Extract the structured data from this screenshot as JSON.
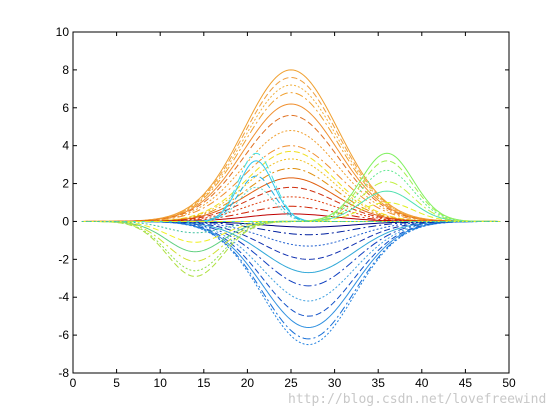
{
  "chart_data": {
    "type": "line",
    "title": "",
    "xlabel": "",
    "ylabel": "",
    "xlim": [
      0,
      50
    ],
    "ylim": [
      -8,
      10
    ],
    "x_ticks": [
      "0",
      "5",
      "10",
      "15",
      "20",
      "25",
      "30",
      "35",
      "40",
      "45",
      "50"
    ],
    "y_ticks": [
      "10",
      "8",
      "6",
      "4",
      "2",
      "0",
      "-2",
      "-4",
      "-6",
      "-8"
    ],
    "x_samples": [
      1,
      49
    ],
    "grid": false,
    "legend": "none",
    "series": [
      {
        "type": "gauss",
        "mu": 25,
        "sigma": 5.4,
        "amps": [
          8.0,
          7.6,
          7.2,
          6.8,
          6.2,
          5.6,
          4.8,
          4.0
        ],
        "colors": [
          "#f0a030",
          "#f0a040",
          "#f0b040",
          "#f0a030",
          "#f09030",
          "#e07020",
          "#f0a030",
          "#f09030"
        ]
      },
      {
        "type": "gauss",
        "mu": 25,
        "sigma": 5.0,
        "amps": [
          3.7,
          3.3,
          2.8,
          2.3,
          1.8,
          1.3,
          0.8,
          0.4
        ],
        "colors": [
          "#f0e020",
          "#f0c020",
          "#e09010",
          "#e06010",
          "#d03010",
          "#e04010",
          "#d02000",
          "#c00000"
        ]
      },
      {
        "type": "gauss",
        "mu": 27,
        "sigma": 5.2,
        "amps": [
          -6.5,
          -6.2,
          -5.6,
          -5.0,
          -4.2,
          -3.4,
          -2.7,
          -2.0,
          -1.3,
          -0.7,
          -0.3
        ],
        "colors": [
          "#2080e0",
          "#1870d8",
          "#3090e0",
          "#1050c8",
          "#40a0e0",
          "#1040c0",
          "#30a8d8",
          "#1030b0",
          "#2060d0",
          "#0020a0",
          "#000080"
        ]
      },
      {
        "type": "gauss",
        "mu": 21,
        "sigma": 2.0,
        "amps": [
          3.6,
          3.2,
          2.4,
          1.8
        ],
        "colors": [
          "#40e0e0",
          "#30c8f0",
          "#20b0e0",
          "#60d8d0"
        ]
      },
      {
        "type": "gauss",
        "mu": 36,
        "sigma": 3.0,
        "amps": [
          3.6,
          3.2,
          2.7,
          2.1,
          1.6,
          1.0
        ],
        "colors": [
          "#80f060",
          "#a0f050",
          "#60e890",
          "#c0f040",
          "#50e0b0",
          "#e0f020"
        ]
      },
      {
        "type": "gauss",
        "mu": 14,
        "sigma": 3.2,
        "amps": [
          -2.9,
          -2.6,
          -2.1,
          -1.6,
          -1.1,
          -0.6
        ],
        "colors": [
          "#b0e040",
          "#90e050",
          "#d0e030",
          "#60d080",
          "#f0f020",
          "#40c0a0"
        ]
      }
    ]
  },
  "watermark": "http://blog.csdn.net/lovefreewind"
}
